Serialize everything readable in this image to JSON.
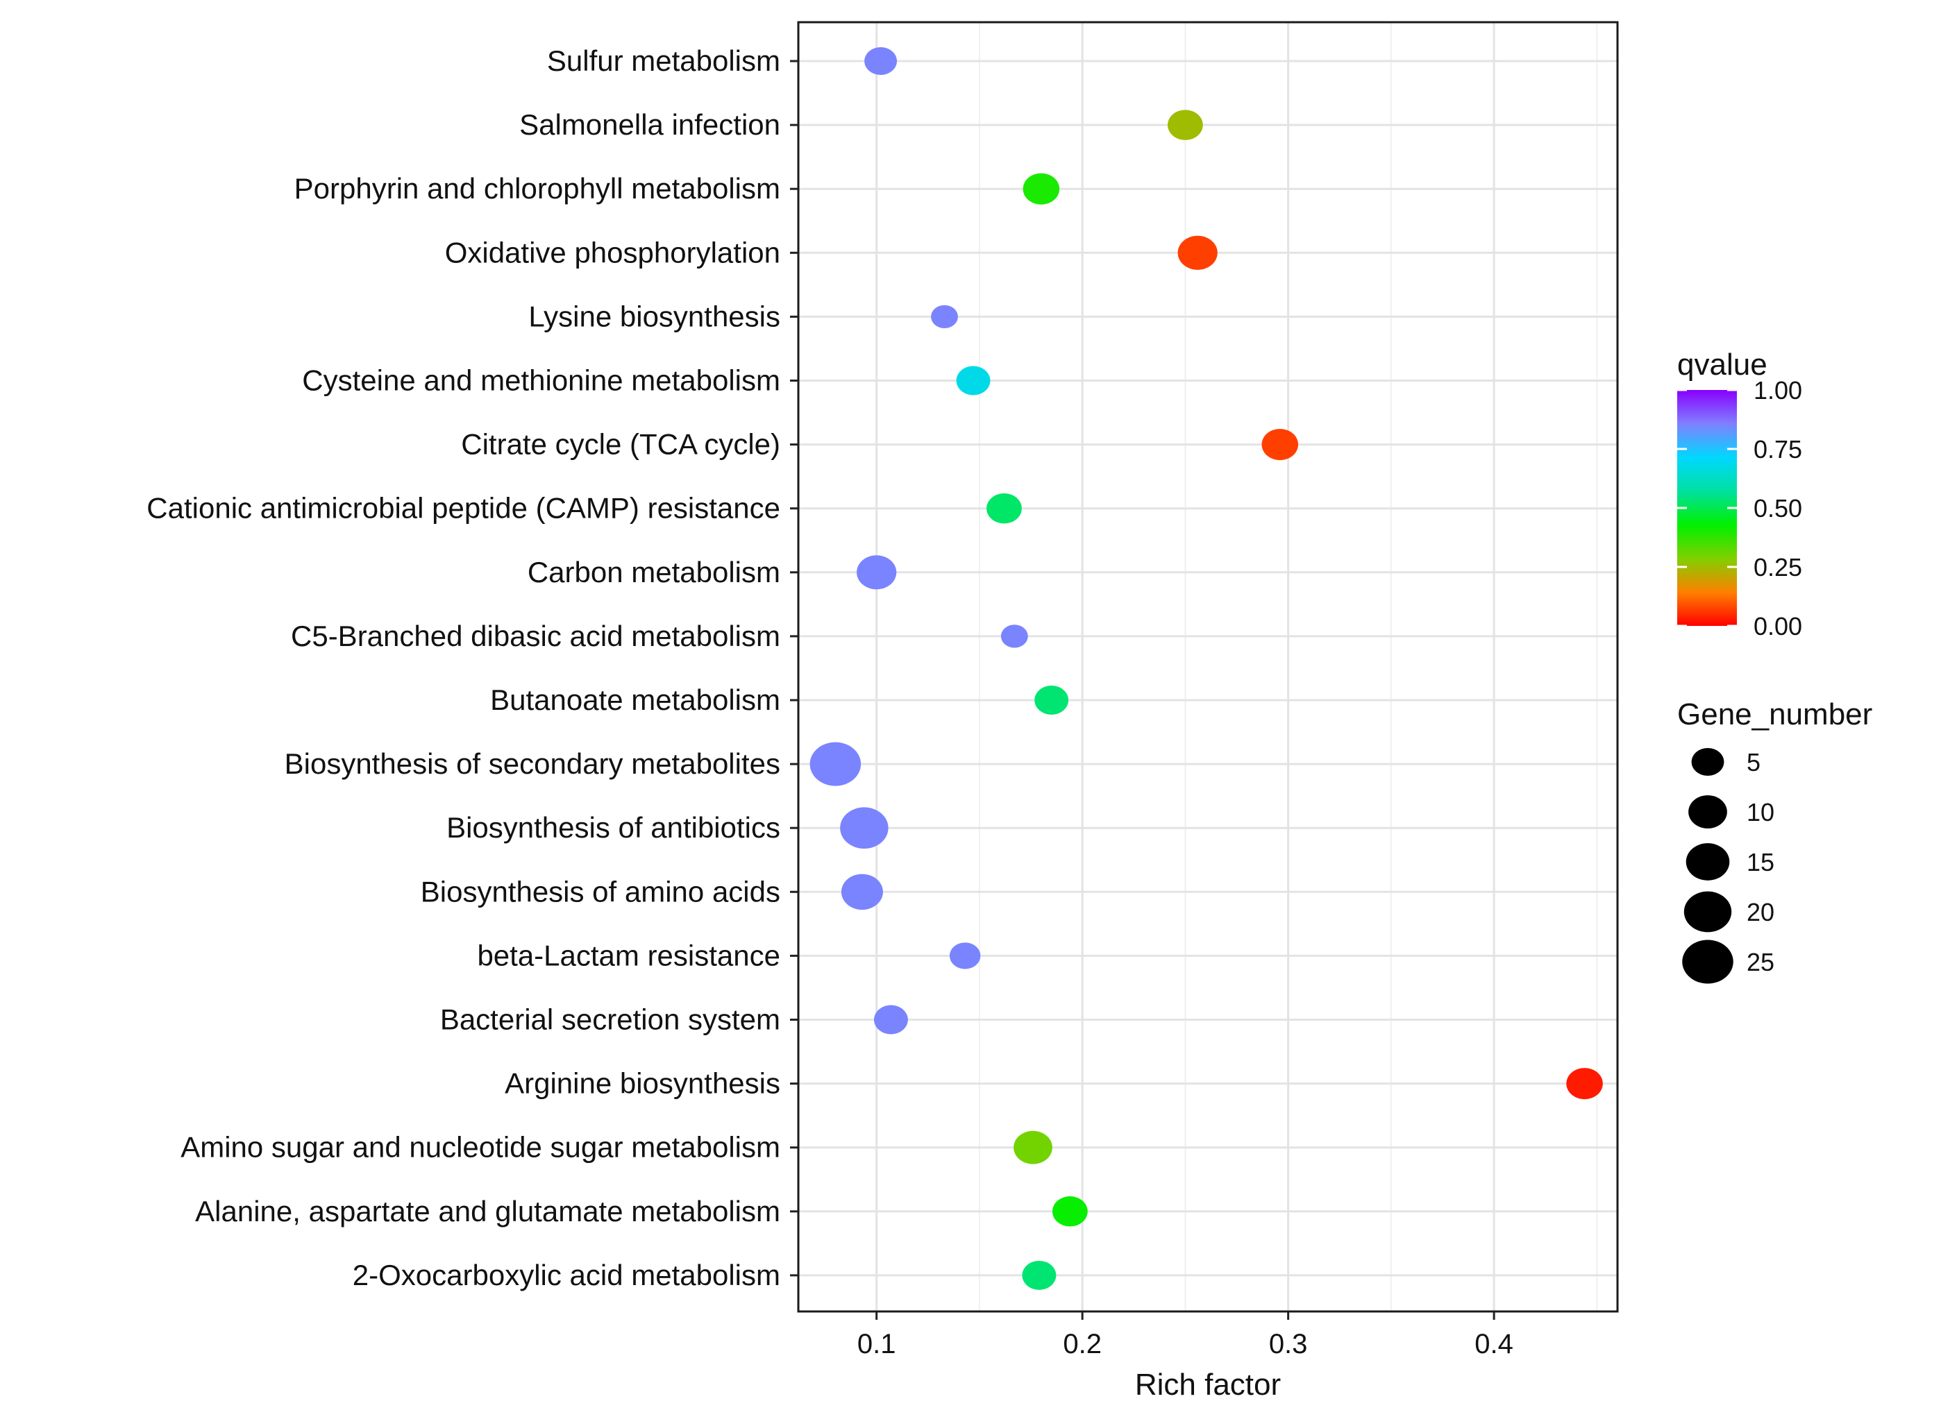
{
  "chart_data": {
    "type": "scatter",
    "title": "",
    "xlabel": "Rich factor",
    "ylabel": "",
    "xlim": [
      0.062,
      0.46
    ],
    "xticks": [
      0.1,
      0.2,
      0.3,
      0.4
    ],
    "xtick_labels": [
      "0.1",
      "0.2",
      "0.3",
      "0.4"
    ],
    "grid": true,
    "categories": [
      "Sulfur metabolism",
      "Salmonella infection",
      "Porphyrin and chlorophyll metabolism",
      "Oxidative phosphorylation",
      "Lysine biosynthesis",
      "Cysteine and methionine metabolism",
      "Citrate cycle (TCA cycle)",
      "Cationic antimicrobial peptide (CAMP) resistance",
      "Carbon metabolism",
      "C5-Branched dibasic acid metabolism",
      "Butanoate metabolism",
      "Biosynthesis of secondary metabolites",
      "Biosynthesis of antibiotics",
      "Biosynthesis of amino acids",
      "beta-Lactam resistance",
      "Bacterial secretion system",
      "Arginine biosynthesis",
      "Amino sugar and nucleotide sugar metabolism",
      "Alanine, aspartate and glutamate metabolism",
      "2-Oxocarboxylic acid metabolism"
    ],
    "points": [
      {
        "category": "Sulfur metabolism",
        "rich_factor": 0.102,
        "qvalue": 0.85,
        "gene_number": 5
      },
      {
        "category": "Salmonella infection",
        "rich_factor": 0.25,
        "qvalue": 0.25,
        "gene_number": 7
      },
      {
        "category": "Porphyrin and chlorophyll metabolism",
        "rich_factor": 0.18,
        "qvalue": 0.4,
        "gene_number": 8
      },
      {
        "category": "Oxidative phosphorylation",
        "rich_factor": 0.256,
        "qvalue": 0.07,
        "gene_number": 11
      },
      {
        "category": "Lysine biosynthesis",
        "rich_factor": 0.133,
        "qvalue": 0.85,
        "gene_number": 2
      },
      {
        "category": "Cysteine and methionine metabolism",
        "rich_factor": 0.147,
        "qvalue": 0.68,
        "gene_number": 6
      },
      {
        "category": "Citrate cycle (TCA cycle)",
        "rich_factor": 0.296,
        "qvalue": 0.07,
        "gene_number": 8
      },
      {
        "category": "Cationic antimicrobial peptide (CAMP) resistance",
        "rich_factor": 0.162,
        "qvalue": 0.52,
        "gene_number": 7
      },
      {
        "category": "Carbon metabolism",
        "rich_factor": 0.1,
        "qvalue": 0.85,
        "gene_number": 11
      },
      {
        "category": "C5-Branched dibasic acid metabolism",
        "rich_factor": 0.167,
        "qvalue": 0.85,
        "gene_number": 2
      },
      {
        "category": "Butanoate metabolism",
        "rich_factor": 0.185,
        "qvalue": 0.53,
        "gene_number": 6
      },
      {
        "category": "Biosynthesis of secondary metabolites",
        "rich_factor": 0.08,
        "qvalue": 0.85,
        "gene_number": 25
      },
      {
        "category": "Biosynthesis of antibiotics",
        "rich_factor": 0.094,
        "qvalue": 0.85,
        "gene_number": 21
      },
      {
        "category": "Biosynthesis of amino acids",
        "rich_factor": 0.093,
        "qvalue": 0.85,
        "gene_number": 13
      },
      {
        "category": "beta-Lactam resistance",
        "rich_factor": 0.143,
        "qvalue": 0.85,
        "gene_number": 4
      },
      {
        "category": "Bacterial secretion system",
        "rich_factor": 0.107,
        "qvalue": 0.85,
        "gene_number": 6
      },
      {
        "category": "Arginine biosynthesis",
        "rich_factor": 0.444,
        "qvalue": 0.03,
        "gene_number": 8
      },
      {
        "category": "Amino sugar and nucleotide sugar metabolism",
        "rich_factor": 0.176,
        "qvalue": 0.3,
        "gene_number": 10
      },
      {
        "category": "Alanine, aspartate and glutamate metabolism",
        "rich_factor": 0.194,
        "qvalue": 0.42,
        "gene_number": 7
      },
      {
        "category": "2-Oxocarboxylic acid metabolism",
        "rich_factor": 0.179,
        "qvalue": 0.53,
        "gene_number": 6
      }
    ],
    "color_legend": {
      "title": "qvalue",
      "range": [
        0.0,
        1.0
      ],
      "ticks": [
        1.0,
        0.75,
        0.5,
        0.25,
        0.0
      ],
      "tick_labels": [
        "1.00",
        "0.75",
        "0.50",
        "0.25",
        "0.00"
      ],
      "gradient": [
        "#ff0000",
        "#ff8000",
        "#80d000",
        "#00f000",
        "#00e0a0",
        "#00d8ff",
        "#8080ff",
        "#8800ff"
      ],
      "placement": "right"
    },
    "size_legend": {
      "title": "Gene_number",
      "values": [
        5,
        10,
        15,
        20,
        25
      ],
      "labels": [
        "5",
        "10",
        "15",
        "20",
        "25"
      ],
      "placement": "right"
    }
  }
}
